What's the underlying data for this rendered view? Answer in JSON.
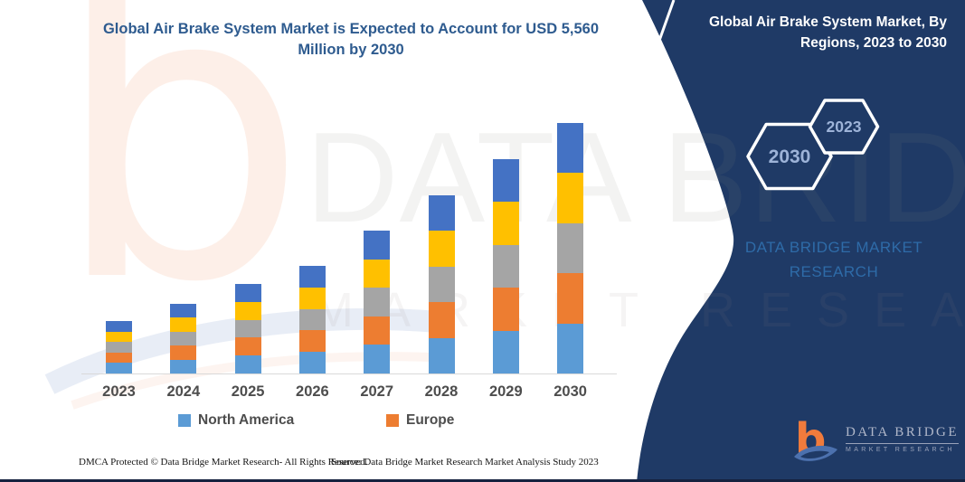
{
  "title": "Global Air Brake System Market is Expected to Account for USD 5,560 Million by 2030",
  "panel": {
    "title": "Global Air Brake System Market, By Regions, 2023 to 2030",
    "hexagons": [
      "2030",
      "2023"
    ],
    "brand": "DATA BRIDGE MARKET RESEARCH",
    "background_color": "#1F3A66",
    "brand_color": "#2E6BA8"
  },
  "chart_data": {
    "type": "bar",
    "stacked": true,
    "title": "Global Air Brake System Market is Expected to Account for USD 5,560 Million by 2030",
    "unit": "USD Million",
    "categories": [
      "2023",
      "2024",
      "2025",
      "2026",
      "2027",
      "2028",
      "2029",
      "2030"
    ],
    "series": [
      {
        "name": "North America",
        "color": "#5B9BD5",
        "legend_visible": true,
        "values": [
          232,
          310,
          398,
          478,
          634,
          790,
          952,
          1112
        ]
      },
      {
        "name": "Europe",
        "color": "#ED7D31",
        "legend_visible": true,
        "values": [
          232,
          310,
          398,
          478,
          634,
          790,
          952,
          1112
        ]
      },
      {
        "name": "",
        "color": "#A5A5A5",
        "legend_visible": false,
        "values": [
          232,
          310,
          398,
          478,
          634,
          790,
          952,
          1112
        ]
      },
      {
        "name": "",
        "color": "#FFC000",
        "legend_visible": false,
        "values": [
          232,
          310,
          398,
          478,
          634,
          790,
          952,
          1112
        ]
      },
      {
        "name": "",
        "color": "#4472C4",
        "legend_visible": false,
        "values": [
          232,
          310,
          398,
          478,
          634,
          790,
          952,
          1112
        ]
      }
    ],
    "totals": [
      1160,
      1550,
      1990,
      2390,
      3170,
      3950,
      4760,
      5560
    ],
    "ylim": [
      0,
      5560
    ],
    "xlabel": "",
    "ylabel": "",
    "gridlines": false,
    "y_axis_visible": false,
    "legend_position": "bottom"
  },
  "legend": [
    {
      "label": "North America",
      "color": "#5B9BD5"
    },
    {
      "label": "Europe",
      "color": "#ED7D31"
    }
  ],
  "watermark": {
    "line1": "DATA BRIDGE",
    "line2": "MARKET RESEARCH",
    "logo_glyph": "b"
  },
  "footer": {
    "dmca": "DMCA Protected © Data Bridge Market Research-  All Rights Reserved.",
    "source": "Source: Data Bridge Market Research  Market Analysis Study 2023"
  },
  "logo": {
    "glyph": "b",
    "name": "DATA BRIDGE",
    "sub": "MARKET RESEARCH"
  }
}
